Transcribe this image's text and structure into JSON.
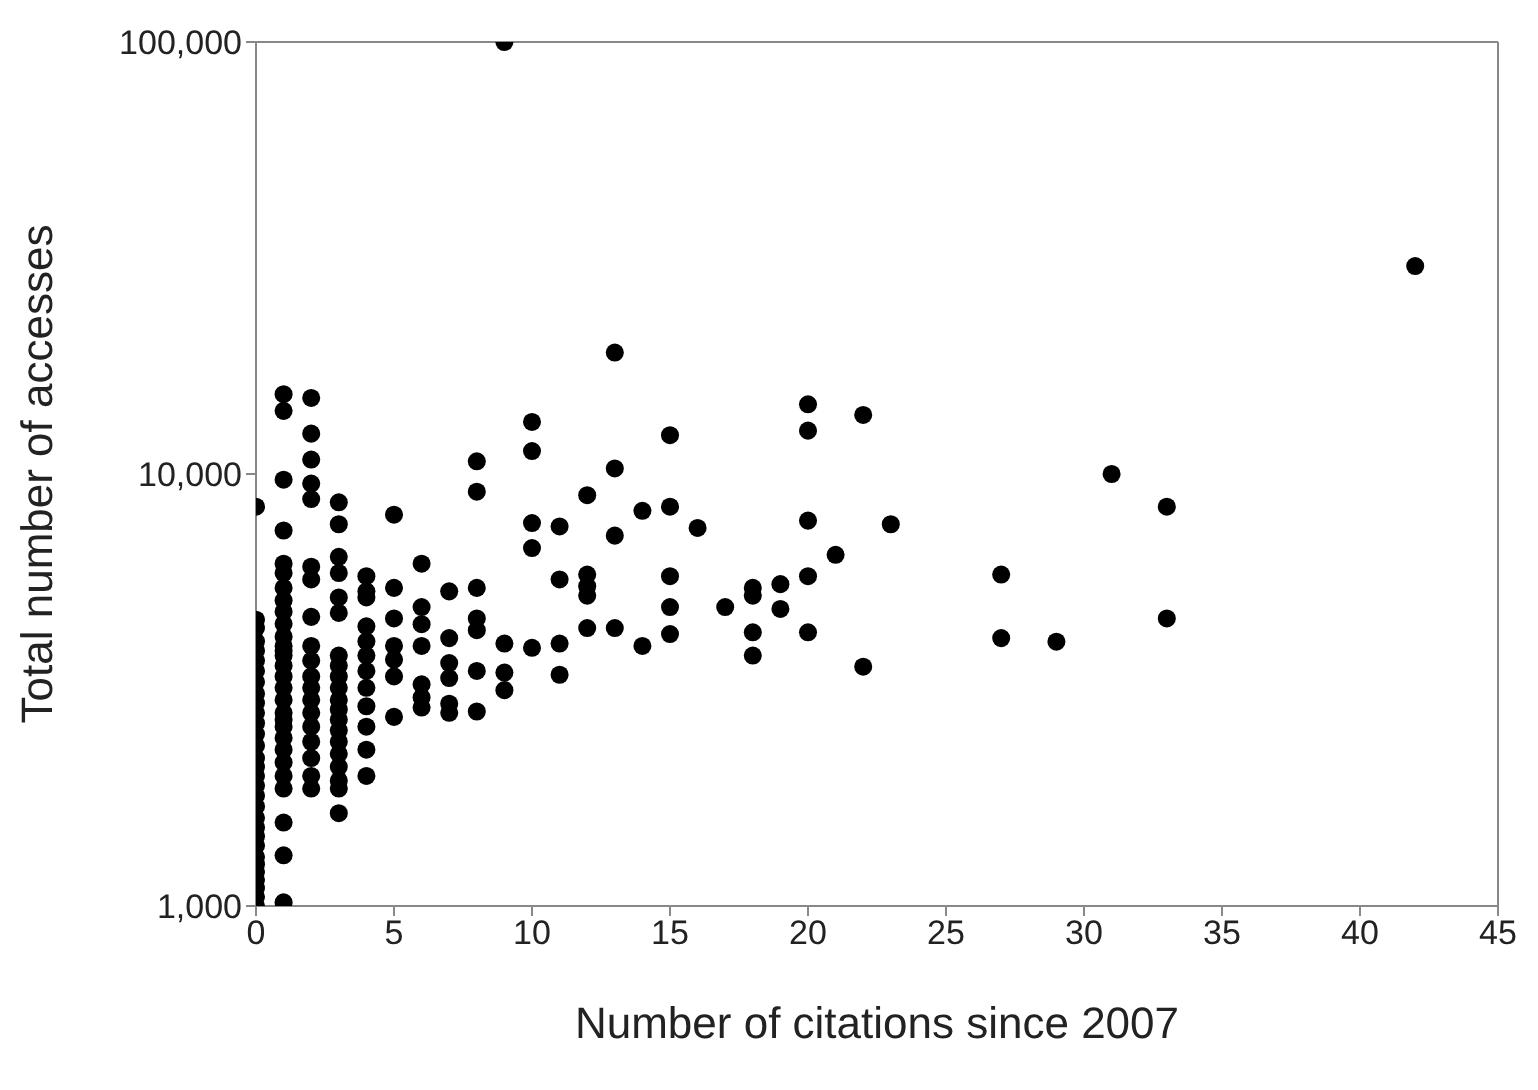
{
  "chart_data": {
    "type": "scatter",
    "xlabel": "Number of citations since 2007",
    "ylabel": "Total number of accesses",
    "log": "y",
    "grid": false,
    "legend": false,
    "marker": "circle",
    "xlim": [
      0,
      45
    ],
    "xticks": [
      0,
      5,
      10,
      15,
      20,
      25,
      30,
      35,
      40,
      45
    ],
    "ylim": [
      1000,
      100000
    ],
    "yticks": [
      {
        "value": 1000,
        "label": "1,000"
      },
      {
        "value": 10000,
        "label": "10,000"
      },
      {
        "value": 100000,
        "label": "100,000"
      }
    ],
    "series": [
      {
        "color": "#000000",
        "x": [
          0,
          0,
          0,
          0,
          0,
          0,
          0,
          0,
          0,
          0,
          0,
          0,
          0,
          0,
          0,
          0,
          0,
          0,
          0,
          0,
          0,
          0,
          0,
          0,
          0,
          0,
          0,
          0,
          0,
          0,
          0,
          1,
          1,
          1,
          1,
          1,
          1,
          1,
          1,
          1,
          1,
          1,
          1,
          1,
          1,
          1,
          1,
          1,
          1,
          1,
          1,
          1,
          1,
          1,
          1,
          1,
          1,
          1,
          1,
          1,
          2,
          2,
          2,
          2,
          2,
          2,
          2,
          2,
          2,
          2,
          2,
          2,
          2,
          2,
          2,
          2,
          2,
          2,
          2,
          3,
          3,
          3,
          3,
          3,
          3,
          3,
          3,
          3,
          3,
          3,
          3,
          3,
          3,
          3,
          3,
          3,
          3,
          3,
          3,
          4,
          4,
          4,
          4,
          4,
          4,
          4,
          4,
          4,
          4,
          4,
          4,
          5,
          5,
          5,
          5,
          5,
          5,
          5,
          6,
          6,
          6,
          6,
          6,
          6,
          6,
          7,
          7,
          7,
          7,
          7,
          7,
          8,
          8,
          8,
          8,
          8,
          8,
          8,
          9,
          9,
          9,
          9,
          10,
          10,
          10,
          10,
          10,
          11,
          11,
          11,
          11,
          12,
          12,
          12,
          12,
          12,
          13,
          13,
          13,
          13,
          14,
          14,
          15,
          15,
          15,
          15,
          15,
          16,
          17,
          18,
          18,
          18,
          18,
          19,
          19,
          20,
          20,
          20,
          20,
          20,
          21,
          22,
          22,
          23,
          27,
          27,
          29,
          31,
          33,
          33,
          42
        ],
        "values": [
          1000,
          1050,
          1100,
          1150,
          1200,
          1250,
          1300,
          1380,
          1450,
          1520,
          1600,
          1700,
          1800,
          1900,
          2000,
          2100,
          2200,
          2350,
          2500,
          2650,
          2800,
          2950,
          3100,
          3300,
          3500,
          3700,
          3900,
          4100,
          4400,
          4600,
          8400,
          15300,
          14000,
          9700,
          7400,
          6200,
          5900,
          5450,
          4800,
          4500,
          4200,
          4000,
          3800,
          3600,
          3400,
          3200,
          3000,
          2800,
          2600,
          2450,
          2300,
          2150,
          2000,
          1870,
          1560,
          1310,
          1020,
          5100,
          3900,
          2700,
          15000,
          12400,
          10800,
          9500,
          8750,
          6100,
          5700,
          4670,
          4000,
          3700,
          3400,
          3200,
          3000,
          2800,
          2600,
          2400,
          2200,
          2000,
          1870,
          8600,
          7650,
          6430,
          5900,
          5180,
          4770,
          3800,
          3600,
          3400,
          3200,
          3000,
          2850,
          2700,
          2550,
          2400,
          2250,
          2100,
          1950,
          1870,
          1640,
          5800,
          5350,
          5180,
          4440,
          4100,
          3800,
          3500,
          3200,
          2900,
          2600,
          2300,
          2000,
          8050,
          5450,
          4630,
          4000,
          3720,
          3400,
          2740,
          6200,
          4920,
          4490,
          4000,
          3260,
          3040,
          2880,
          5350,
          4170,
          3650,
          3370,
          2940,
          2800,
          10700,
          9100,
          5450,
          4630,
          4350,
          3500,
          2820,
          100000,
          4050,
          3470,
          3160,
          13200,
          11300,
          7700,
          6740,
          3960,
          7560,
          5700,
          4050,
          3430,
          8930,
          5850,
          5500,
          5230,
          4400,
          19100,
          10300,
          7200,
          4400,
          8220,
          4000,
          12300,
          8400,
          5800,
          4920,
          4260,
          7500,
          4920,
          5450,
          5230,
          4300,
          3800,
          5560,
          4870,
          14500,
          12600,
          7800,
          5800,
          4300,
          6500,
          13700,
          3580,
          7650,
          5850,
          4170,
          4090,
          10000,
          8400,
          4630,
          30300
        ]
      }
    ]
  }
}
